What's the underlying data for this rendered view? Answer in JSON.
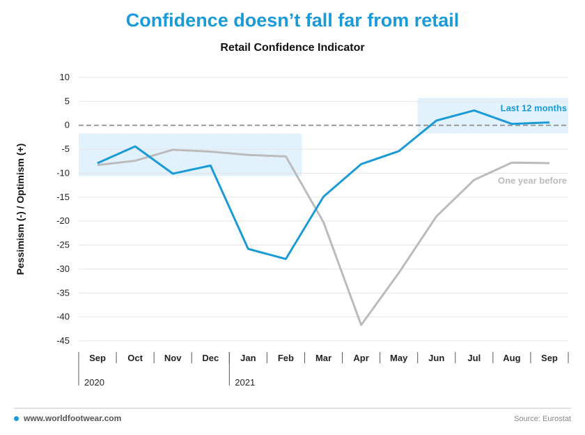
{
  "header": {
    "title": "Confidence doesn’t fall far from retail",
    "subtitle": "Retail Confidence Indicator"
  },
  "footer": {
    "url": "www.worldfootwear.com",
    "source": "Source: Eurostat"
  },
  "colors": {
    "current": "#1a9ad6",
    "previous": "#bbbbbb",
    "highlight": "#e2f2fc",
    "zero_line": "#999999"
  },
  "chart_data": {
    "type": "line",
    "title": "Retail Confidence Indicator",
    "ylabel": "Pessimism (-) / Optimism (+)",
    "xlabel": "",
    "categories": [
      "Sep",
      "Oct",
      "Nov",
      "Dec",
      "Jan",
      "Feb",
      "Mar",
      "Apr",
      "May",
      "Jun",
      "Jul",
      "Aug",
      "Sep"
    ],
    "year_labels": [
      "2020",
      "2021"
    ],
    "ylim": [
      -45,
      10
    ],
    "yticks": [
      10,
      5,
      0,
      -5,
      -10,
      -15,
      -20,
      -25,
      -30,
      -35,
      -40,
      -45
    ],
    "grid": true,
    "series": [
      {
        "name": "Last 12 months",
        "values": [
          -7.9,
          -4.4,
          -10.1,
          -8.4,
          -25.8,
          -27.9,
          -14.9,
          -8.1,
          -5.4,
          1.0,
          3.1,
          0.3,
          0.6
        ]
      },
      {
        "name": "One year before",
        "values": [
          -8.3,
          -7.4,
          -5.1,
          -5.5,
          -6.2,
          -6.5,
          -20.2,
          -41.7,
          -30.8,
          -19.0,
          -11.4,
          -7.8,
          -7.9
        ]
      }
    ]
  }
}
